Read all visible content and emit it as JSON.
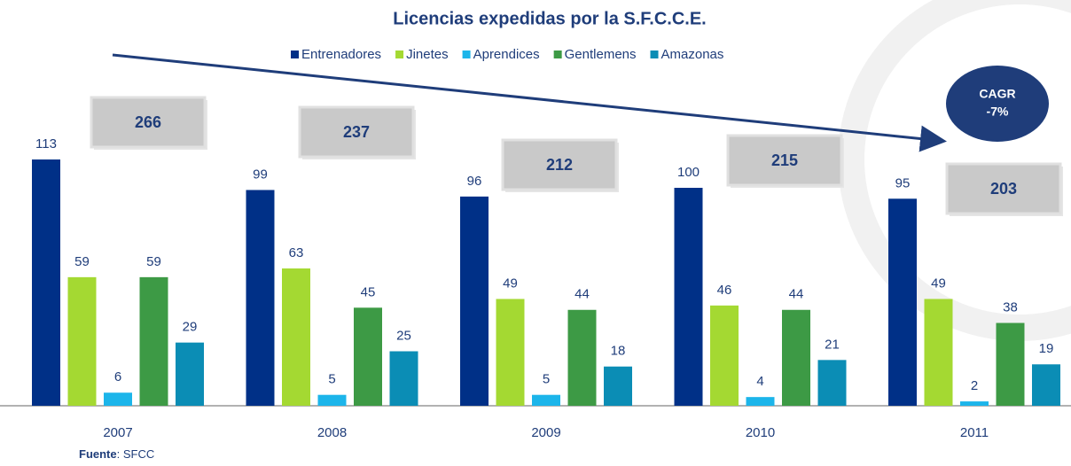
{
  "chart_data": {
    "type": "bar",
    "title": "Licencias expedidas por la S.F.C.C.E.",
    "categories": [
      "2007",
      "2008",
      "2009",
      "2010",
      "2011"
    ],
    "series": [
      {
        "name": "Entrenadores",
        "color": "#003087",
        "values": [
          113,
          99,
          96,
          100,
          95
        ]
      },
      {
        "name": "Jinetes",
        "color": "#a4d932",
        "values": [
          59,
          63,
          49,
          46,
          49
        ]
      },
      {
        "name": "Aprendices",
        "color": "#1cb5ea",
        "values": [
          6,
          5,
          5,
          4,
          2
        ]
      },
      {
        "name": "Gentlemens",
        "color": "#3d9a45",
        "values": [
          59,
          45,
          44,
          44,
          38
        ]
      },
      {
        "name": "Amazonas",
        "color": "#0b8db5",
        "values": [
          29,
          25,
          18,
          21,
          19
        ]
      }
    ],
    "totals": [
      266,
      237,
      212,
      215,
      203
    ],
    "cagr_label": "CAGR",
    "cagr_value": "-7%",
    "source_label": "Fuente",
    "source_text": ": SFCC"
  }
}
